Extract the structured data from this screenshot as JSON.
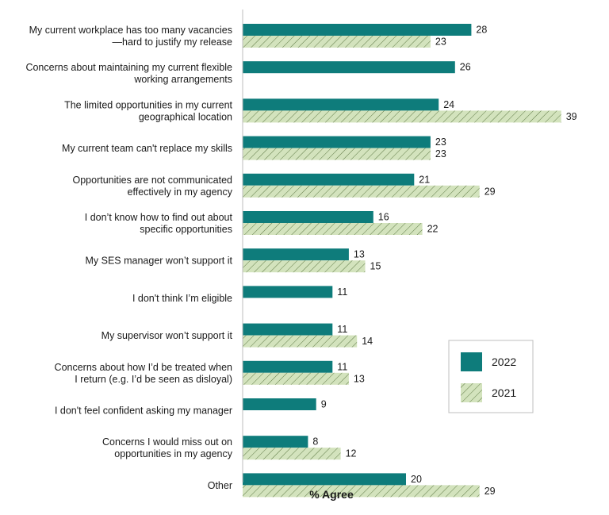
{
  "chart_data": {
    "type": "bar",
    "orientation": "horizontal",
    "categories": [
      [
        "My current workplace has too many vacancies",
        "—hard to justify my release"
      ],
      [
        "Concerns about maintaining my current flexible",
        "working arrangements"
      ],
      [
        "The limited opportunities in my current",
        "geographical location"
      ],
      [
        "My current team can't replace my skills"
      ],
      [
        "Opportunities are not communicated",
        "effectively in my agency"
      ],
      [
        "I don’t know how to find out about",
        "specific opportunities"
      ],
      [
        "My SES manager won’t support it"
      ],
      [
        "I don't think I’m eligible"
      ],
      [
        "My supervisor won’t support it"
      ],
      [
        "Concerns about how I’d be treated when",
        "I return (e.g. I’d be seen as disloyal)"
      ],
      [
        "I don't feel confident asking my manager"
      ],
      [
        "Concerns I would miss out on",
        "opportunities in my agency"
      ],
      [
        "Other"
      ]
    ],
    "series": [
      {
        "name": "2022",
        "color": "#0e7c7b",
        "pattern": "solid",
        "values": [
          28,
          26,
          24,
          23,
          21,
          16,
          13,
          11,
          11,
          11,
          9,
          8,
          20
        ]
      },
      {
        "name": "2021",
        "color": "#c9dcb0",
        "pattern": "hatched",
        "values": [
          23,
          null,
          39,
          23,
          29,
          22,
          15,
          null,
          14,
          13,
          null,
          12,
          29
        ]
      }
    ],
    "xlabel": "% Agree",
    "ylabel": "",
    "title": "",
    "xlim": [
      0,
      40
    ],
    "grid": false,
    "legend_position": "lower-right"
  }
}
